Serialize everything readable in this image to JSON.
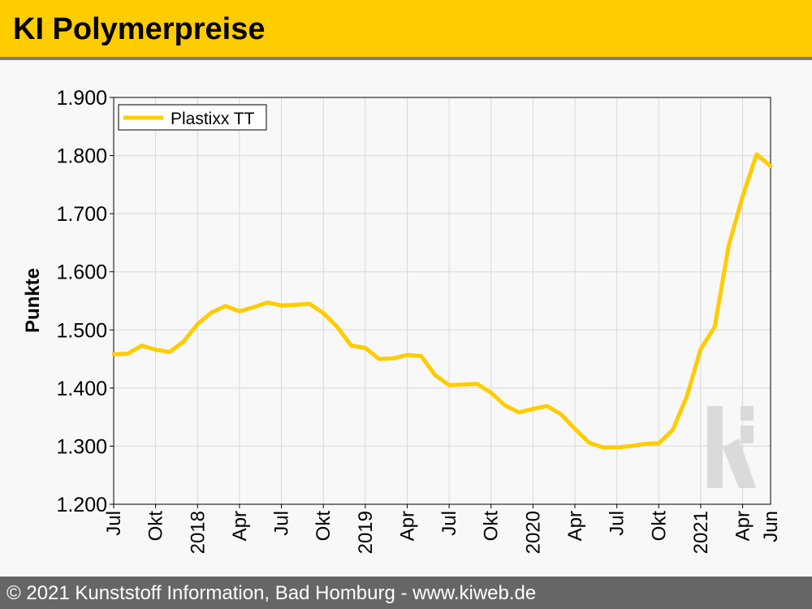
{
  "header": {
    "title": "KI Polymerpreise"
  },
  "footer": {
    "text": "© 2021 Kunststoff Information, Bad Homburg - www.kiweb.de"
  },
  "watermark": {
    "text": "ki"
  },
  "colors": {
    "series": "#ffcc00",
    "header_bg": "#ffcc00",
    "footer_bg": "#666666",
    "grid": "#d8d8d8"
  },
  "chart_data": {
    "type": "line",
    "title": "",
    "xlabel": "",
    "ylabel": "Punkte",
    "ylim": [
      1200,
      1900
    ],
    "yticks": [
      1200,
      1300,
      1400,
      1500,
      1600,
      1700,
      1800,
      1900
    ],
    "ytick_labels": [
      "1.200",
      "1.300",
      "1.400",
      "1.500",
      "1.600",
      "1.700",
      "1.800",
      "1.900"
    ],
    "xlim": [
      "2017-07",
      "2021-06"
    ],
    "xtick_labels": [
      "Jul",
      "Okt",
      "2018",
      "Apr",
      "Jul",
      "Okt",
      "2019",
      "Apr",
      "Jul",
      "Okt",
      "2020",
      "Apr",
      "Jul",
      "Okt",
      "2021",
      "Apr",
      "Jun"
    ],
    "grid": true,
    "legend": {
      "position": "top-left",
      "entries": [
        "Plastixx TT"
      ]
    },
    "x": [
      "2017-07",
      "2017-08",
      "2017-09",
      "2017-10",
      "2017-11",
      "2017-12",
      "2018-01",
      "2018-02",
      "2018-03",
      "2018-04",
      "2018-05",
      "2018-06",
      "2018-07",
      "2018-08",
      "2018-09",
      "2018-10",
      "2018-11",
      "2018-12",
      "2019-01",
      "2019-02",
      "2019-03",
      "2019-04",
      "2019-05",
      "2019-06",
      "2019-07",
      "2019-08",
      "2019-09",
      "2019-10",
      "2019-11",
      "2019-12",
      "2020-01",
      "2020-02",
      "2020-03",
      "2020-04",
      "2020-05",
      "2020-06",
      "2020-07",
      "2020-08",
      "2020-09",
      "2020-10",
      "2020-11",
      "2020-12",
      "2021-01",
      "2021-02",
      "2021-03",
      "2021-04",
      "2021-05",
      "2021-06"
    ],
    "series": [
      {
        "name": "Plastixx TT",
        "values": [
          1458,
          1459,
          1473,
          1466,
          1462,
          1480,
          1510,
          1530,
          1541,
          1532,
          1539,
          1547,
          1542,
          1543,
          1545,
          1529,
          1505,
          1473,
          1469,
          1450,
          1451,
          1457,
          1455,
          1422,
          1405,
          1406,
          1407,
          1392,
          1370,
          1358,
          1364,
          1369,
          1355,
          1330,
          1306,
          1298,
          1298,
          1300,
          1304,
          1305,
          1328,
          1385,
          1467,
          1505,
          1645,
          1730,
          1802,
          1782
        ]
      }
    ]
  }
}
